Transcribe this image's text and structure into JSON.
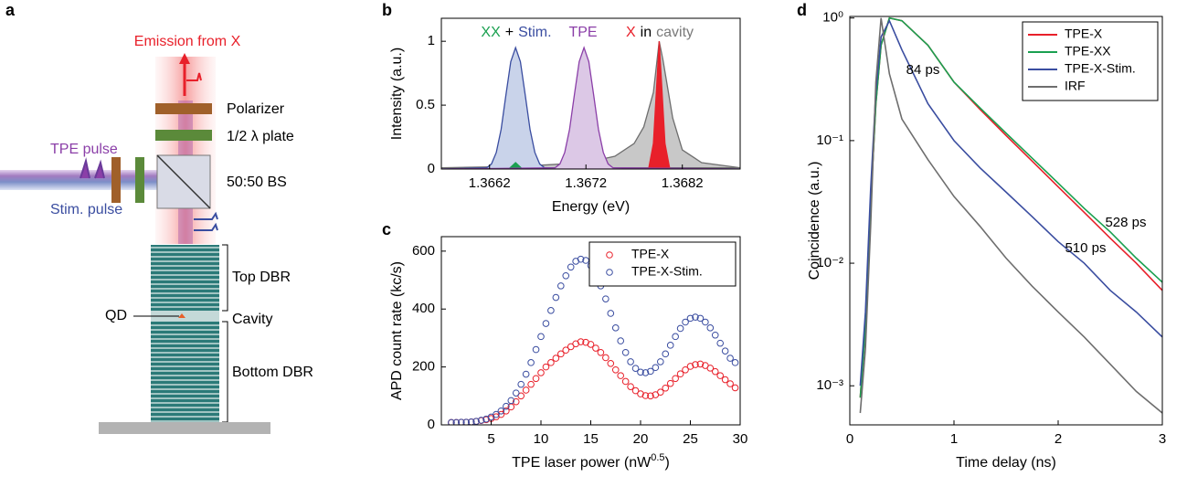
{
  "panel_labels": [
    "a",
    "b",
    "c",
    "d"
  ],
  "diagram": {
    "labels": [
      "Emission from X",
      "Polarizer",
      "1/2 λ plate",
      "TPE pulse",
      "50:50 BS",
      "Stim. pulse",
      "Top DBR",
      "QD",
      "Cavity",
      "Bottom DBR"
    ]
  },
  "chart_data": [
    {
      "type": "area",
      "xlabel": "Energy (eV)",
      "ylabel": "Intensity (a.u.)",
      "xlim": [
        1.3657,
        1.3688
      ],
      "ylim": [
        0,
        1.18
      ],
      "xticks": [
        1.3662,
        1.3672,
        1.3682
      ],
      "yticks": [
        0,
        0.5,
        1
      ],
      "annotations": [
        {
          "parts": [
            {
              "text": "XX",
              "color": "#1aa050"
            },
            {
              "text": "+",
              "color": "#000000"
            },
            {
              "text": "Stim.",
              "color": "#3a4da0"
            }
          ]
        },
        {
          "parts": [
            {
              "text": "TPE",
              "color": "#8b3fa8"
            }
          ]
        },
        {
          "parts": [
            {
              "text": "X",
              "color": "#e8202a"
            },
            {
              "text": "in",
              "color": "#000000"
            },
            {
              "text": "cavity",
              "color": "#7a7a7a"
            }
          ]
        }
      ],
      "series": [
        {
          "color": "#6e6e6e",
          "fill": "#c8c8c8",
          "x": [
            1.3657,
            1.3665,
            1.3672,
            1.3675,
            1.3677,
            1.3678,
            1.3679,
            1.36796,
            1.368,
            1.3681,
            1.3682,
            1.3684,
            1.3688
          ],
          "values": [
            0.01,
            0.02,
            0.05,
            0.1,
            0.2,
            0.33,
            0.6,
            1.0,
            0.85,
            0.4,
            0.15,
            0.05,
            0.01
          ]
        },
        {
          "color": "#e8202a",
          "fill": "#e8202a",
          "x": [
            1.36785,
            1.3679,
            1.36793,
            1.36796,
            1.36799,
            1.36802,
            1.36807
          ],
          "values": [
            0,
            0.2,
            0.6,
            1.0,
            0.6,
            0.2,
            0
          ]
        },
        {
          "color": "#3a4da0",
          "fill": "#c9d3ea",
          "x": [
            1.3657,
            1.36617,
            1.36622,
            1.36627,
            1.36632,
            1.36637,
            1.36642,
            1.36647,
            1.36652,
            1.36657,
            1.36662,
            1.36667,
            1.36672,
            1.36677,
            1.3688
          ],
          "values": [
            0,
            0.01,
            0.04,
            0.13,
            0.31,
            0.58,
            0.84,
            0.95,
            0.84,
            0.58,
            0.31,
            0.13,
            0.04,
            0.01,
            0
          ]
        },
        {
          "color": "#1aa050",
          "fill": "#1aa050",
          "x": [
            1.3664,
            1.36647,
            1.36654
          ],
          "values": [
            0,
            0.05,
            0
          ]
        },
        {
          "color": "#8b3fa8",
          "fill": "#dcc8e6",
          "x": [
            1.3657,
            1.36688,
            1.36693,
            1.36698,
            1.36703,
            1.36708,
            1.36713,
            1.36718,
            1.36723,
            1.36728,
            1.36733,
            1.36738,
            1.36743,
            1.36748,
            1.3688
          ],
          "values": [
            0,
            0.01,
            0.04,
            0.13,
            0.31,
            0.58,
            0.84,
            0.95,
            0.84,
            0.58,
            0.31,
            0.13,
            0.04,
            0.01,
            0
          ]
        }
      ]
    },
    {
      "type": "scatter",
      "xlabel": [
        "TPE laser power (nW",
        "0.5",
        ")"
      ],
      "ylabel": "APD count rate (kc/s)",
      "xlim": [
        0,
        30
      ],
      "ylim": [
        0,
        650
      ],
      "xticks": [
        5,
        10,
        15,
        20,
        25,
        30
      ],
      "yticks": [
        0,
        200,
        400,
        600
      ],
      "legend": "upper right",
      "x": [
        1,
        1.5,
        2,
        2.5,
        3,
        3.5,
        4,
        4.5,
        5,
        5.5,
        6,
        6.5,
        7,
        7.5,
        8,
        8.5,
        9,
        9.5,
        10,
        10.5,
        11,
        11.5,
        12,
        12.5,
        13,
        13.5,
        14,
        14.5,
        15,
        15.5,
        16,
        16.5,
        17,
        17.5,
        18,
        18.5,
        19,
        19.5,
        20,
        20.5,
        21,
        21.5,
        22,
        22.5,
        23,
        23.5,
        24,
        24.5,
        25,
        25.5,
        26,
        26.5,
        27,
        27.5,
        28,
        28.5,
        29,
        29.5
      ],
      "series": [
        {
          "name": "TPE-X",
          "color": "#e8202a",
          "values": [
            8,
            8,
            9,
            9,
            10,
            12,
            15,
            18,
            22,
            28,
            36,
            48,
            62,
            80,
            100,
            120,
            140,
            160,
            180,
            200,
            215,
            230,
            245,
            258,
            270,
            280,
            287,
            285,
            278,
            265,
            250,
            232,
            212,
            190,
            170,
            150,
            132,
            118,
            107,
            101,
            100,
            104,
            113,
            127,
            143,
            160,
            176,
            190,
            202,
            208,
            210,
            205,
            196,
            184,
            170,
            156,
            142,
            128
          ]
        },
        {
          "name": "TPE-X-Stim.",
          "color": "#3a4da0",
          "values": [
            8,
            8,
            9,
            9,
            10,
            12,
            16,
            20,
            27,
            36,
            48,
            64,
            84,
            110,
            140,
            175,
            215,
            260,
            305,
            350,
            395,
            440,
            480,
            515,
            545,
            565,
            572,
            568,
            550,
            520,
            480,
            435,
            385,
            335,
            290,
            250,
            218,
            195,
            182,
            180,
            185,
            198,
            218,
            245,
            275,
            305,
            333,
            355,
            368,
            372,
            368,
            355,
            335,
            310,
            282,
            255,
            230,
            215
          ]
        }
      ]
    },
    {
      "type": "line",
      "xlabel": "Time delay (ns)",
      "ylabel": "Coincidence (a.u.)",
      "log_y": true,
      "xlim": [
        0,
        3
      ],
      "ylim": [
        0.00048,
        1.03
      ],
      "xticks": [
        0,
        1,
        2,
        3
      ],
      "yticks": [
        {
          "value": 0.001,
          "label": "10⁻³"
        },
        {
          "value": 0.01,
          "label": "10⁻²"
        },
        {
          "value": 0.1,
          "label": "10⁻¹"
        },
        {
          "value": 1,
          "label": "10⁰"
        }
      ],
      "legend": "upper right",
      "annotations": [
        {
          "text": "84 ps",
          "color": "#3a4da0"
        },
        {
          "text": "528 ps",
          "color": "#1aa050"
        },
        {
          "text": "510 ps",
          "color": "#e8202a"
        }
      ],
      "x": [
        0.1,
        0.15,
        0.2,
        0.25,
        0.3,
        0.38,
        0.5,
        0.75,
        1,
        1.25,
        1.5,
        1.75,
        2,
        2.25,
        2.5,
        2.75,
        3
      ],
      "series": [
        {
          "name": "TPE-X",
          "color": "#e8202a",
          "values": [
            0.0008,
            0.003,
            0.03,
            0.2,
            0.6,
            1,
            0.95,
            0.6,
            0.3,
            0.18,
            0.11,
            0.068,
            0.042,
            0.026,
            0.016,
            0.01,
            0.006
          ]
        },
        {
          "name": "TPE-XX",
          "color": "#1aa050",
          "values": [
            0.0008,
            0.003,
            0.03,
            0.2,
            0.6,
            1,
            0.95,
            0.6,
            0.3,
            0.185,
            0.115,
            0.072,
            0.045,
            0.028,
            0.018,
            0.011,
            0.007
          ]
        },
        {
          "name": "TPE-X-Stim.",
          "color": "#3a4da0",
          "values": [
            0.001,
            0.004,
            0.04,
            0.25,
            0.7,
            0.95,
            0.55,
            0.2,
            0.1,
            0.06,
            0.038,
            0.024,
            0.015,
            0.01,
            0.006,
            0.004,
            0.0025
          ]
        },
        {
          "name": "IRF",
          "color": "#6e6e6e",
          "values": [
            0.0006,
            0.002,
            0.02,
            0.3,
            1,
            0.35,
            0.15,
            0.07,
            0.035,
            0.02,
            0.011,
            0.0065,
            0.004,
            0.0025,
            0.0015,
            0.0009,
            0.0006
          ]
        }
      ]
    }
  ]
}
